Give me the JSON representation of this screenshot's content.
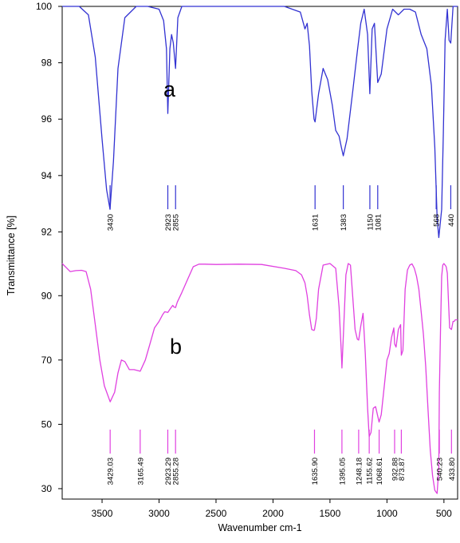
{
  "chart_data": {
    "type": "line",
    "xlabel": "Wavenumber cm-1",
    "ylabel": "Transmittance [%]",
    "xlim": [
      3850,
      380
    ],
    "x_ticks": [
      "3500",
      "3000",
      "2500",
      "2000",
      "1500",
      "1000",
      "500"
    ],
    "x_tick_values": [
      3500,
      3000,
      2500,
      2000,
      1500,
      1000,
      500
    ],
    "panels": [
      {
        "label": "a",
        "color": "#3232d2",
        "ylim": [
          91.7,
          100
        ],
        "y_ticks": [
          "100",
          "98",
          "96",
          "94",
          "92"
        ],
        "y_tick_values": [
          100,
          98,
          96,
          94,
          92
        ],
        "series": [
          {
            "x": [
              3850,
              3700,
              3620,
              3560,
              3500,
              3460,
              3430,
              3400,
              3360,
              3300,
              3200,
              3100,
              3000,
              2960,
              2935,
              2923,
              2905,
              2890,
              2875,
              2855,
              2835,
              2800,
              2700,
              2500,
              2200,
              1900,
              1760,
              1720,
              1700,
              1680,
              1660,
              1640,
              1631,
              1600,
              1560,
              1520,
              1480,
              1450,
              1420,
              1400,
              1383,
              1350,
              1300,
              1260,
              1230,
              1200,
              1170,
              1150,
              1130,
              1110,
              1081,
              1050,
              1000,
              950,
              900,
              850,
              800,
              750,
              700,
              650,
              610,
              580,
              560,
              545,
              520,
              505,
              490,
              470,
              455,
              440,
              420,
              400,
              380
            ],
            "y": [
              100,
              100,
              99.7,
              98.2,
              95.3,
              93.5,
              92.8,
              94.5,
              97.8,
              99.6,
              100,
              100,
              99.9,
              99.5,
              98.5,
              96.2,
              98.5,
              99.0,
              98.7,
              97.8,
              99.6,
              100,
              100,
              100,
              100,
              100,
              99.8,
              99.2,
              99.4,
              98.6,
              97.0,
              96.0,
              95.9,
              96.9,
              97.8,
              97.4,
              96.5,
              95.6,
              95.4,
              95.0,
              94.7,
              95.3,
              97.0,
              98.4,
              99.4,
              99.9,
              99.0,
              96.9,
              99.2,
              99.4,
              97.3,
              97.6,
              99.2,
              99.9,
              99.7,
              99.9,
              99.9,
              99.8,
              99.0,
              98.5,
              97.2,
              95.0,
              92.5,
              91.8,
              92.8,
              95.5,
              98.8,
              99.9,
              98.8,
              98.7,
              100,
              100,
              100
            ]
          }
        ],
        "peaks": [
          "3430",
          "2923",
          "2855",
          "1631",
          "1383",
          "1150",
          "1081",
          "568",
          "440"
        ],
        "peak_positions": [
          3430,
          2923,
          2855,
          1631,
          1383,
          1150,
          1081,
          568,
          440
        ]
      },
      {
        "label": "b",
        "color": "#e040e0",
        "ylim": [
          28,
          100
        ],
        "y_ticks": [
          "90",
          "70",
          "50",
          "30"
        ],
        "y_tick_values": [
          90,
          70,
          50,
          30
        ],
        "series": [
          {
            "x": [
              3850,
              3780,
              3730,
              3680,
              3640,
              3600,
              3560,
              3520,
              3480,
              3429,
              3390,
              3360,
              3330,
              3300,
              3260,
              3220,
              3165,
              3120,
              3080,
              3040,
              3000,
              2970,
              2950,
              2923,
              2900,
              2880,
              2870,
              2855,
              2840,
              2800,
              2750,
              2700,
              2650,
              2600,
              2500,
              2300,
              2100,
              1900,
              1800,
              1750,
              1720,
              1700,
              1680,
              1660,
              1640,
              1636,
              1620,
              1600,
              1560,
              1500,
              1450,
              1420,
              1400,
              1395,
              1380,
              1360,
              1340,
              1320,
              1300,
              1280,
              1260,
              1248,
              1230,
              1210,
              1190,
              1170,
              1156,
              1140,
              1120,
              1100,
              1069,
              1050,
              1020,
              1000,
              980,
              960,
              940,
              933,
              920,
              900,
              880,
              874,
              860,
              840,
              820,
              800,
              780,
              760,
              740,
              720,
              700,
              680,
              660,
              640,
              620,
              600,
              580,
              560,
              545,
              540,
              530,
              520,
              510,
              500,
              490,
              480,
              470,
              460,
              450,
              434,
              420,
              410,
              400,
              390,
              380
            ],
            "y": [
              100,
              97.5,
              97.8,
              97.9,
              97.5,
              92,
              81,
              70,
              62,
              57,
              60,
              66,
              70,
              69.5,
              67,
              67,
              66.5,
              70,
              75,
              80,
              82,
              84,
              85,
              84.8,
              86,
              87,
              86.5,
              86.3,
              88,
              91,
              95,
              99,
              99.8,
              99.8,
              99.7,
              99.8,
              99.7,
              98.5,
              97.8,
              96.5,
              94,
              90,
              84,
              79.5,
              79.2,
              79.5,
              83,
              92,
              99.5,
              100,
              98.5,
              86.5,
              72,
              67.5,
              80,
              96.5,
              100,
              99.5,
              89.5,
              79.5,
              76.5,
              76.2,
              80.5,
              84.5,
              72,
              55,
              46.2,
              47.5,
              55,
              55.5,
              50.7,
              53,
              63,
              70,
              72,
              77,
              80,
              75,
              74,
              79.5,
              81,
              71.5,
              73,
              92,
              98,
              99.5,
              99.9,
              98.5,
              96,
              92,
              85,
              78,
              68,
              55,
              42,
              34,
              29.5,
              28.5,
              36.5,
              60,
              80,
              96,
              99.5,
              100,
              99.5,
              99,
              97,
              88,
              80,
              79.5,
              82,
              82,
              82.5,
              82.5,
              82.5
            ]
          }
        ],
        "peaks": [
          "3429.03",
          "3165.49",
          "2923.29",
          "2855.28",
          "1635.90",
          "1395.05",
          "1248.18",
          "1155.62",
          "1068.61",
          "932.88",
          "873.87",
          "540.23",
          "433.80"
        ],
        "peak_positions": [
          3429.03,
          3165.49,
          2923.29,
          2855.28,
          1635.9,
          1395.05,
          1248.18,
          1155.62,
          1068.61,
          932.88,
          873.87,
          540.23,
          433.8
        ]
      }
    ],
    "grid": false,
    "legend": "none"
  }
}
